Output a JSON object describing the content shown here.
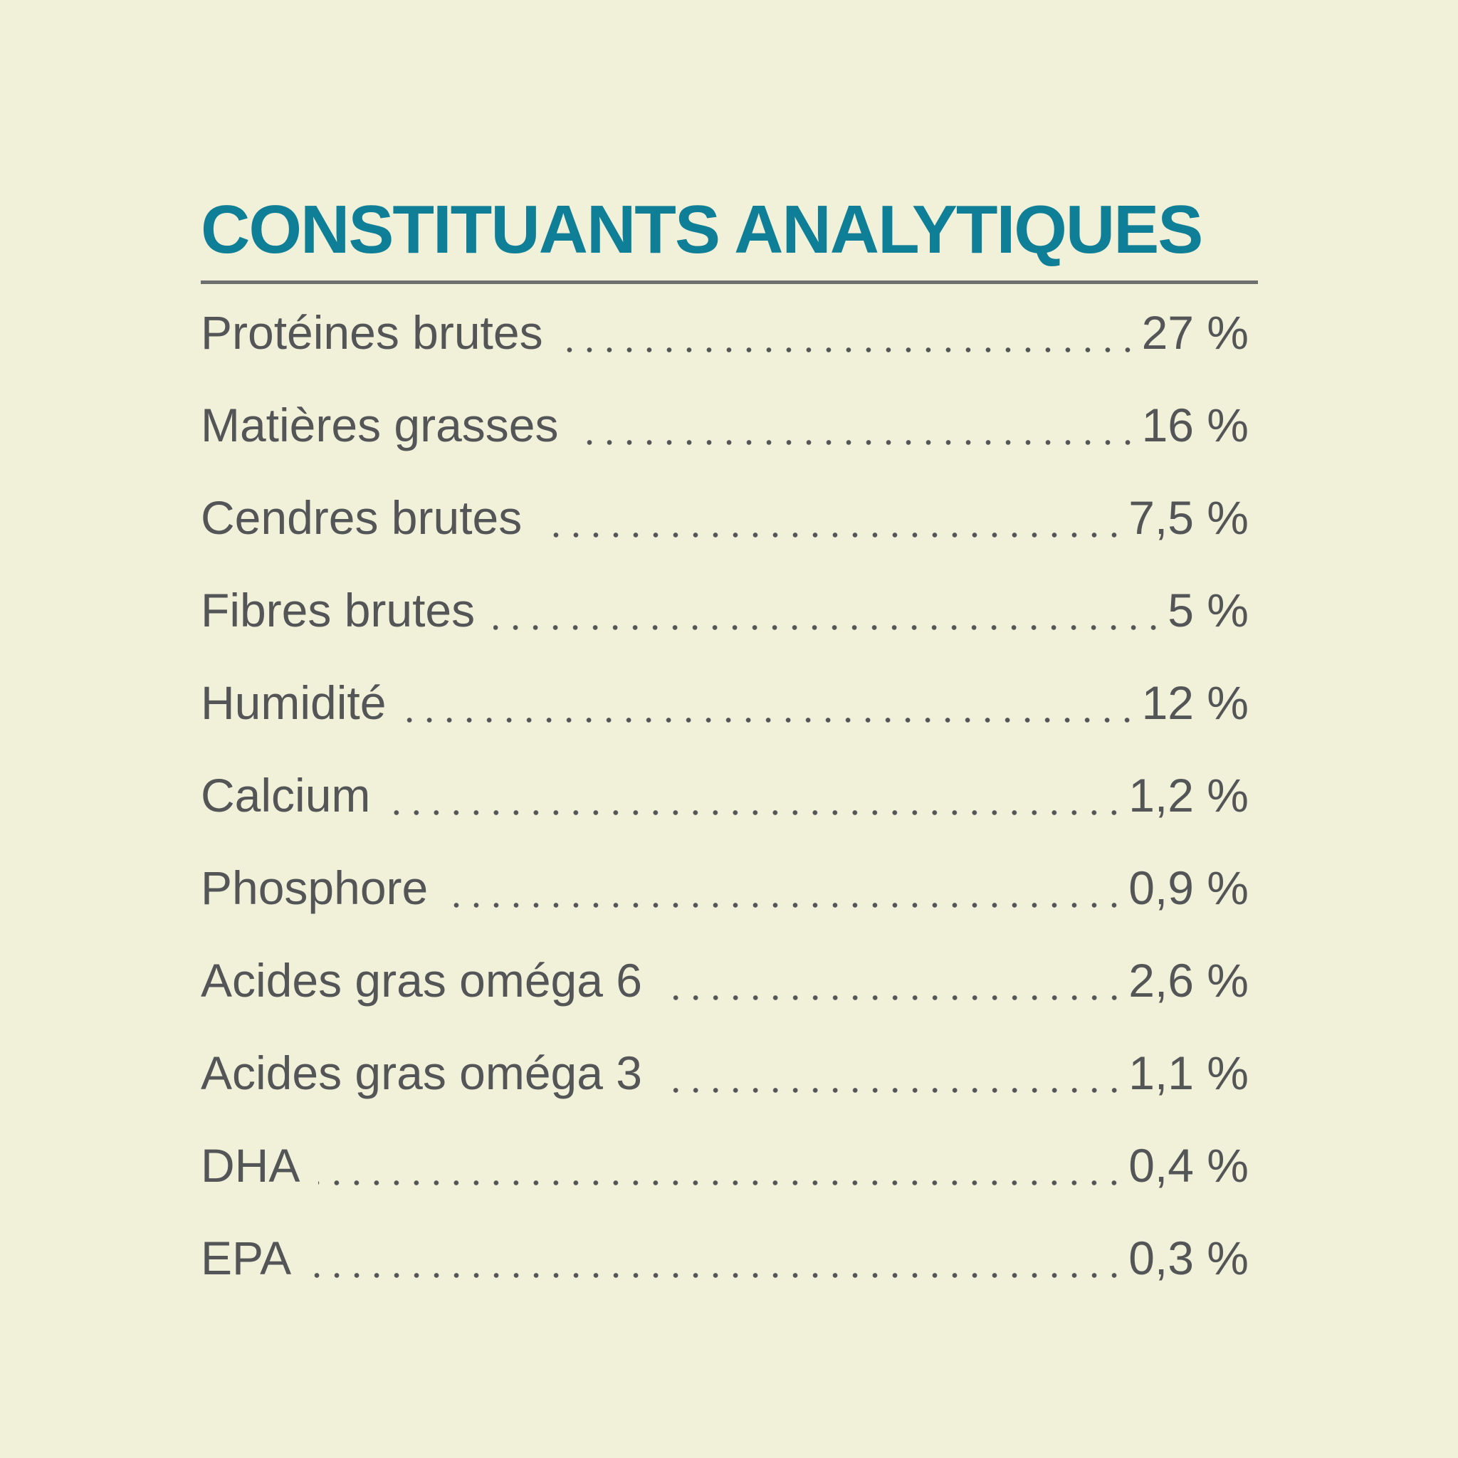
{
  "colors": {
    "background": "#f1f1da",
    "title": "#0f7f97",
    "text": "#535557",
    "rule": "#6e6f6f"
  },
  "title": "CONSTITUANTS ANALYTIQUES",
  "rows": [
    {
      "label": "Protéines brutes",
      "value": "27 %"
    },
    {
      "label": "Matières grasses",
      "value": "16 %"
    },
    {
      "label": "Cendres brutes",
      "value": "7,5 %"
    },
    {
      "label": "Fibres brutes",
      "value": "5 %"
    },
    {
      "label": "Humidité",
      "value": "12 %"
    },
    {
      "label": "Calcium",
      "value": "1,2 %"
    },
    {
      "label": "Phosphore",
      "value": "0,9 %"
    },
    {
      "label": "Acides gras oméga 6",
      "value": "2,6 %"
    },
    {
      "label": "Acides gras oméga 3",
      "value": "1,1 %"
    },
    {
      "label": "DHA",
      "value": "0,4 %"
    },
    {
      "label": "EPA",
      "value": "0,3 %"
    }
  ]
}
